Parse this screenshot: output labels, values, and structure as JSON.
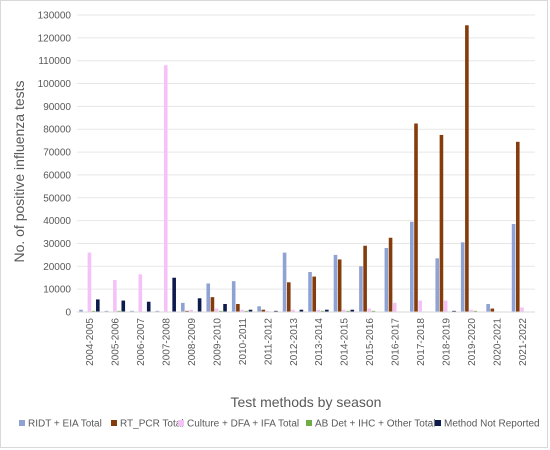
{
  "chart_data": {
    "type": "bar",
    "title": "",
    "xlabel": "Test methods by season",
    "ylabel": "No. of positive influenza tests",
    "ylim": [
      0,
      130000
    ],
    "y_tick_step": 10000,
    "y_ticks": [
      "0",
      "10000",
      "20000",
      "30000",
      "40000",
      "50000",
      "60000",
      "70000",
      "80000",
      "90000",
      "100000",
      "110000",
      "120000",
      "130000"
    ],
    "grid": true,
    "legend_position": "bottom",
    "categories": [
      "2004-2005",
      "2005-2006",
      "2006-2007",
      "2007-2008",
      "2008-2009",
      "2009-2010",
      "2010-2011",
      "2011-2012",
      "2012-2013",
      "2013-2014",
      "2014-2015",
      "2015-2016",
      "2016-2017",
      "2017-2018",
      "2018-2019",
      "2019-2020",
      "2020-2021",
      "2021-2022"
    ],
    "series": [
      {
        "name": "RIDT + EIA Total",
        "color": "#8fa2d4",
        "values": [
          1000,
          500,
          500,
          500,
          4000,
          12500,
          13500,
          2500,
          26000,
          17500,
          25000,
          20000,
          28000,
          39500,
          23500,
          30500,
          3500,
          38500
        ]
      },
      {
        "name": "RT_PCR Total",
        "color": "#843c0c",
        "values": [
          0,
          0,
          0,
          0,
          500,
          6500,
          3500,
          1000,
          13000,
          15500,
          23000,
          29000,
          32500,
          82500,
          77500,
          125500,
          1500,
          74500
        ]
      },
      {
        "name": "Culture + DFA + IFA Total",
        "color": "#f4c2f6",
        "values": [
          26000,
          14000,
          16500,
          108000,
          1000,
          1500,
          1000,
          500,
          1000,
          1000,
          1000,
          1500,
          4000,
          5000,
          5000,
          1000,
          0,
          2000
        ]
      },
      {
        "name": "AB Det + IHC + Other Total",
        "color": "#70ad47",
        "values": [
          500,
          500,
          0,
          0,
          0,
          500,
          500,
          0,
          0,
          500,
          500,
          500,
          0,
          0,
          0,
          500,
          0,
          0
        ]
      },
      {
        "name": "Method Not Reported",
        "color": "#0d1a4d",
        "values": [
          5500,
          5000,
          4500,
          15000,
          6000,
          3500,
          1000,
          500,
          1000,
          1000,
          1000,
          0,
          0,
          0,
          500,
          0,
          0,
          0
        ]
      }
    ]
  }
}
